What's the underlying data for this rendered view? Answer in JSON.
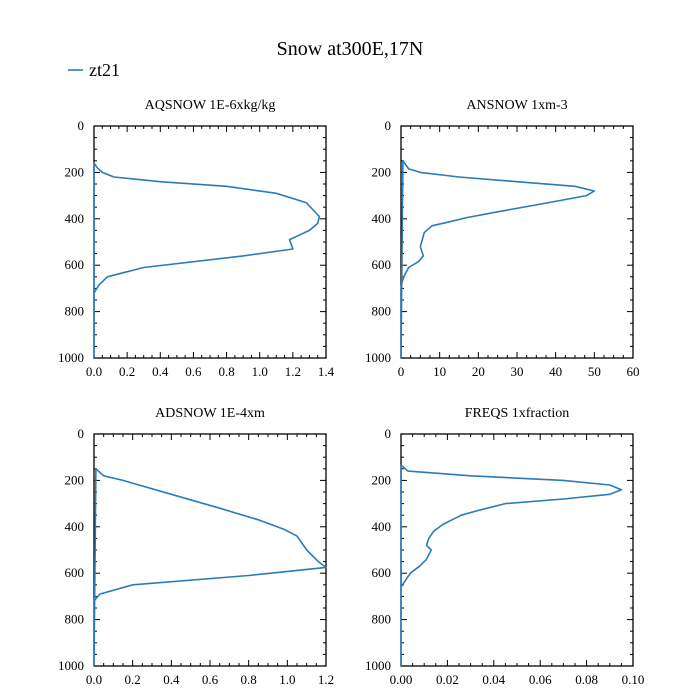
{
  "figure": {
    "title": "Snow at300E,17N",
    "legend": {
      "label": "zt21",
      "color": "#2b7bb9",
      "placement": "top-left"
    }
  },
  "chart_data": [
    {
      "type": "line",
      "title": "AQSNOW  1E-6xkg/kg",
      "xlim": [
        0,
        1.4
      ],
      "ylim": [
        0,
        1000
      ],
      "y_inverted": true,
      "xticks": [
        "0.0",
        "0.2",
        "0.4",
        "0.6",
        "0.8",
        "1.0",
        "1.2",
        "1.4"
      ],
      "xtick_values": [
        0,
        0.2,
        0.4,
        0.6,
        0.8,
        1.0,
        1.2,
        1.4
      ],
      "yticks": [
        "0",
        "200",
        "400",
        "600",
        "800",
        "1000"
      ],
      "ytick_values": [
        0,
        200,
        400,
        600,
        800,
        1000
      ],
      "series": [
        {
          "name": "zt21",
          "color": "#2b7bb9",
          "x": [
            0,
            0.0,
            0.02,
            0.05,
            0.12,
            0.4,
            0.8,
            1.1,
            1.28,
            1.36,
            1.35,
            1.3,
            1.18,
            1.2,
            0.9,
            0.3,
            0.08,
            0.03,
            0,
            0
          ],
          "y": [
            1000,
            160,
            180,
            200,
            220,
            240,
            260,
            290,
            330,
            390,
            420,
            450,
            490,
            530,
            560,
            610,
            650,
            685,
            720,
            1000
          ]
        }
      ]
    },
    {
      "type": "line",
      "title": "ANSNOW  1xm-3",
      "xlim": [
        0,
        60
      ],
      "ylim": [
        0,
        1000
      ],
      "y_inverted": true,
      "xticks": [
        "0",
        "10",
        "20",
        "30",
        "40",
        "50",
        "60"
      ],
      "xtick_values": [
        0,
        10,
        20,
        30,
        40,
        50,
        60
      ],
      "yticks": [
        "0",
        "200",
        "400",
        "600",
        "800",
        "1000"
      ],
      "ytick_values": [
        0,
        200,
        400,
        600,
        800,
        1000
      ],
      "series": [
        {
          "name": "zt21",
          "color": "#2b7bb9",
          "x": [
            0,
            0.5,
            2,
            5,
            15,
            30,
            45,
            50,
            48,
            35,
            25,
            17,
            12,
            8,
            6,
            5.5,
            5,
            5.8,
            4.5,
            2,
            1,
            0.3,
            0,
            0
          ],
          "y": [
            1000,
            150,
            185,
            200,
            220,
            240,
            260,
            280,
            300,
            340,
            370,
            395,
            415,
            430,
            460,
            490,
            520,
            560,
            585,
            610,
            640,
            670,
            700,
            1000
          ]
        }
      ]
    },
    {
      "type": "line",
      "title": "ADSNOW  1E-4xm",
      "xlim": [
        0,
        1.2
      ],
      "ylim": [
        0,
        1000
      ],
      "y_inverted": true,
      "xticks": [
        "0.0",
        "0.2",
        "0.4",
        "0.6",
        "0.8",
        "1.0",
        "1.2"
      ],
      "xtick_values": [
        0,
        0.2,
        0.4,
        0.6,
        0.8,
        1.0,
        1.2
      ],
      "yticks": [
        "0",
        "200",
        "400",
        "600",
        "800",
        "1000"
      ],
      "ytick_values": [
        0,
        200,
        400,
        600,
        800,
        1000
      ],
      "series": [
        {
          "name": "zt21",
          "color": "#2b7bb9",
          "x": [
            0,
            0.01,
            0.05,
            0.15,
            0.4,
            0.65,
            0.85,
            0.98,
            1.05,
            1.1,
            1.16,
            1.2,
            0.8,
            0.2,
            0.03,
            0,
            0
          ],
          "y": [
            1000,
            150,
            180,
            200,
            260,
            320,
            370,
            410,
            440,
            500,
            550,
            575,
            610,
            650,
            690,
            720,
            1000
          ]
        }
      ]
    },
    {
      "type": "line",
      "title": "FREQS  1xfraction",
      "xlim": [
        0,
        0.1
      ],
      "ylim": [
        0,
        1000
      ],
      "y_inverted": true,
      "xticks": [
        "0.00",
        "0.02",
        "0.04",
        "0.06",
        "0.08",
        "0.10"
      ],
      "xtick_values": [
        0,
        0.02,
        0.04,
        0.06,
        0.08,
        0.1
      ],
      "yticks": [
        "0",
        "200",
        "400",
        "600",
        "800",
        "1000"
      ],
      "ytick_values": [
        0,
        200,
        400,
        600,
        800,
        1000
      ],
      "series": [
        {
          "name": "zt21",
          "color": "#2b7bb9",
          "x": [
            0,
            0.0,
            0.003,
            0.03,
            0.07,
            0.09,
            0.095,
            0.09,
            0.07,
            0.045,
            0.033,
            0.026,
            0.022,
            0.018,
            0.014,
            0.012,
            0.011,
            0.013,
            0.011,
            0.008,
            0.004,
            0.002,
            0.0,
            0.0
          ],
          "y": [
            1000,
            135,
            160,
            180,
            200,
            220,
            240,
            260,
            280,
            300,
            330,
            350,
            370,
            390,
            420,
            450,
            480,
            500,
            540,
            570,
            600,
            630,
            660,
            1000
          ]
        }
      ]
    }
  ]
}
